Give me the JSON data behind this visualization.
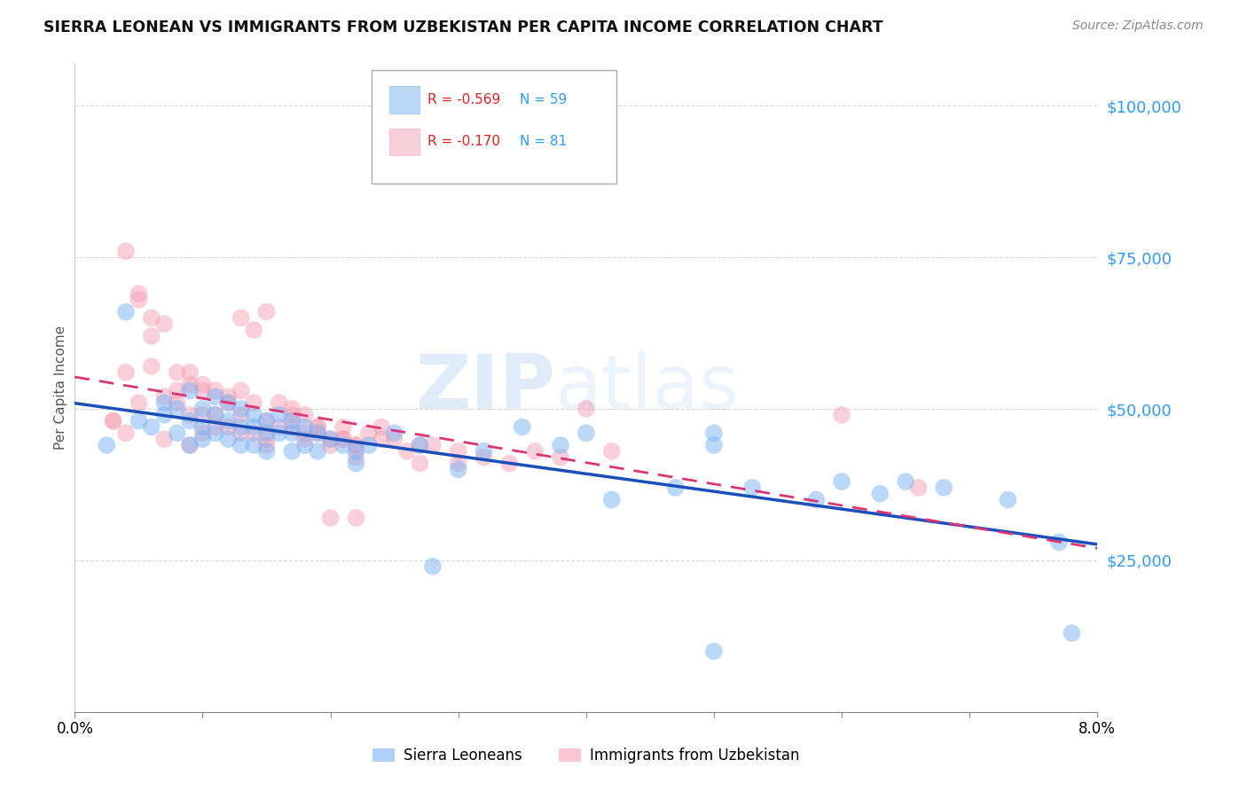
{
  "title": "SIERRA LEONEAN VS IMMIGRANTS FROM UZBEKISTAN PER CAPITA INCOME CORRELATION CHART",
  "source": "Source: ZipAtlas.com",
  "ylabel": "Per Capita Income",
  "yticks": [
    0,
    25000,
    50000,
    75000,
    100000
  ],
  "ytick_labels": [
    "",
    "$25,000",
    "$50,000",
    "$75,000",
    "$100,000"
  ],
  "xlim": [
    0.0,
    0.08
  ],
  "ylim": [
    0,
    107000
  ],
  "legend_r1": "-0.569",
  "legend_n1": "59",
  "legend_r2": "-0.170",
  "legend_n2": "81",
  "blue_color": "#7ab3f5",
  "pink_color": "#f5a0b5",
  "line_blue": "#1a4fbb",
  "line_pink": "#dd3377",
  "axis_color": "#3399ff",
  "watermark_zip": "ZIP",
  "watermark_atlas": "atlas",
  "blue_scatter_x": [
    0.0025,
    0.004,
    0.005,
    0.006,
    0.007,
    0.007,
    0.008,
    0.008,
    0.009,
    0.009,
    0.009,
    0.01,
    0.01,
    0.01,
    0.011,
    0.011,
    0.011,
    0.012,
    0.012,
    0.012,
    0.013,
    0.013,
    0.013,
    0.014,
    0.014,
    0.014,
    0.015,
    0.015,
    0.015,
    0.016,
    0.016,
    0.017,
    0.017,
    0.017,
    0.018,
    0.018,
    0.019,
    0.019,
    0.02,
    0.021,
    0.022,
    0.022,
    0.023,
    0.025,
    0.027,
    0.03,
    0.032,
    0.038,
    0.04,
    0.042,
    0.047,
    0.05,
    0.053,
    0.058,
    0.063,
    0.068,
    0.073,
    0.077,
    0.05
  ],
  "blue_scatter_y": [
    44000,
    66000,
    48000,
    47000,
    49000,
    51000,
    50000,
    46000,
    53000,
    48000,
    44000,
    50000,
    47000,
    45000,
    52000,
    49000,
    46000,
    51000,
    48000,
    45000,
    50000,
    47000,
    44000,
    49000,
    47000,
    44000,
    48000,
    46000,
    43000,
    49000,
    46000,
    48000,
    46000,
    43000,
    47000,
    44000,
    46000,
    43000,
    45000,
    44000,
    43000,
    41000,
    44000,
    46000,
    44000,
    40000,
    43000,
    44000,
    46000,
    35000,
    37000,
    44000,
    37000,
    35000,
    36000,
    37000,
    35000,
    28000,
    46000
  ],
  "blue_scatter_y_extra": [
    47000,
    38000,
    38000,
    24000,
    10000,
    13000
  ],
  "blue_scatter_x_extra": [
    0.035,
    0.06,
    0.065,
    0.028,
    0.05,
    0.078
  ],
  "pink_scatter_x": [
    0.003,
    0.004,
    0.005,
    0.005,
    0.006,
    0.007,
    0.007,
    0.008,
    0.008,
    0.009,
    0.009,
    0.01,
    0.01,
    0.01,
    0.011,
    0.011,
    0.012,
    0.012,
    0.013,
    0.013,
    0.013,
    0.014,
    0.014,
    0.015,
    0.015,
    0.015,
    0.016,
    0.016,
    0.017,
    0.017,
    0.018,
    0.018,
    0.019,
    0.019,
    0.02,
    0.02,
    0.021,
    0.021,
    0.022,
    0.022,
    0.023,
    0.024,
    0.025,
    0.026,
    0.027,
    0.028,
    0.03,
    0.032,
    0.034,
    0.036,
    0.004,
    0.005,
    0.006,
    0.008,
    0.009,
    0.01,
    0.012,
    0.013,
    0.014,
    0.015,
    0.017,
    0.018,
    0.019,
    0.021,
    0.022,
    0.024,
    0.027,
    0.03,
    0.04,
    0.042,
    0.003,
    0.004,
    0.006,
    0.007,
    0.009,
    0.011,
    0.038,
    0.06,
    0.066,
    0.02,
    0.022
  ],
  "pink_scatter_y": [
    48000,
    56000,
    51000,
    68000,
    62000,
    52000,
    64000,
    53000,
    51000,
    56000,
    49000,
    53000,
    49000,
    46000,
    53000,
    49000,
    51000,
    47000,
    53000,
    49000,
    46000,
    51000,
    46000,
    48000,
    45000,
    44000,
    47000,
    51000,
    49000,
    47000,
    49000,
    45000,
    47000,
    46000,
    45000,
    44000,
    47000,
    45000,
    44000,
    42000,
    46000,
    45000,
    45000,
    43000,
    41000,
    44000,
    43000,
    42000,
    41000,
    43000,
    76000,
    69000,
    57000,
    56000,
    54000,
    54000,
    52000,
    65000,
    63000,
    66000,
    50000,
    46000,
    47000,
    45000,
    44000,
    47000,
    44000,
    41000,
    50000,
    43000,
    48000,
    46000,
    65000,
    45000,
    44000,
    47000,
    42000,
    49000,
    37000,
    32000,
    32000
  ]
}
